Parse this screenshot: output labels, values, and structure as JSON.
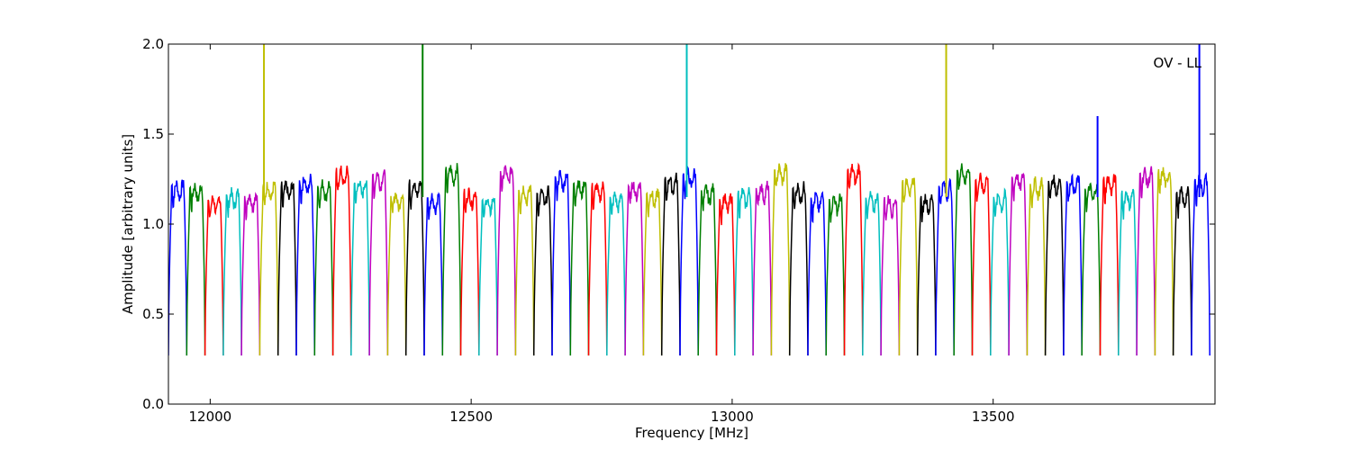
{
  "chart_data": {
    "type": "line",
    "title": "",
    "xlabel": "Frequency [MHz]",
    "ylabel": "Amplitude [arbitrary units]",
    "xlim": [
      11920,
      13925
    ],
    "ylim": [
      0.0,
      2.0
    ],
    "xticks": [
      12000,
      12500,
      13000,
      13500
    ],
    "yticks": [
      0.0,
      0.5,
      1.0,
      1.5,
      2.0
    ],
    "ytick_labels": [
      "0.0",
      "0.5",
      "1.0",
      "1.5",
      "2.0"
    ],
    "grid": false,
    "legend": "none",
    "annotation": "OV - LL",
    "color_cycle": [
      "#0000ff",
      "#007f00",
      "#ff0000",
      "#00bfbf",
      "#bf00bf",
      "#bfbf00",
      "#000000"
    ],
    "band": {
      "start": 11920,
      "width": 35.0,
      "baseline": 0.27,
      "plateau": 1.17,
      "count": 57
    },
    "spikes": [
      {
        "x": 12103,
        "y": 2.0,
        "color": "#bfbf00"
      },
      {
        "x": 12407,
        "y": 2.0,
        "color": "#007f00"
      },
      {
        "x": 12913,
        "y": 2.0,
        "color": "#00bfbf"
      },
      {
        "x": 13410,
        "y": 2.0,
        "color": "#bfbf00"
      },
      {
        "x": 13700,
        "y": 1.6,
        "color": "#0000ff"
      },
      {
        "x": 13895,
        "y": 2.0,
        "color": "#0000ff"
      }
    ]
  }
}
